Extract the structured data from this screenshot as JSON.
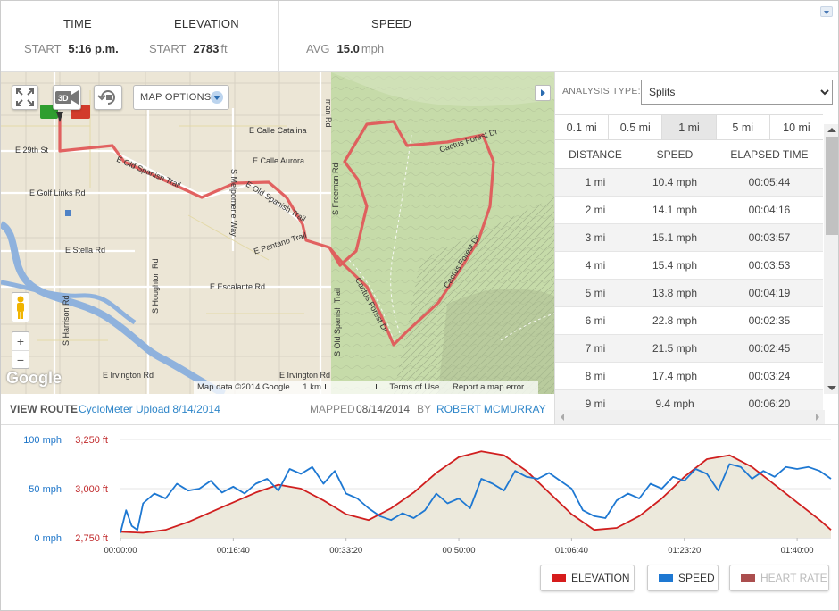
{
  "stats": {
    "time": {
      "heading": "TIME",
      "start_label": "START",
      "start_value": "5:16 p.m."
    },
    "elevation": {
      "heading": "ELEVATION",
      "start_label": "START",
      "start_value": "2783",
      "start_unit": "ft"
    },
    "speed": {
      "heading": "SPEED",
      "avg_label": "AVG",
      "avg_value": "15.0",
      "avg_unit": "mph"
    }
  },
  "map": {
    "options_label": "MAP OPTIONS",
    "badge_3d": "3D",
    "attribution": "Map data ©2014 Google",
    "scale_label": "1 km",
    "terms": "Terms of Use",
    "report": "Report a map error",
    "google_logo": "Google",
    "zoom_in": "+",
    "zoom_out": "−",
    "streets": [
      {
        "name": "E 29th St"
      },
      {
        "name": "E Calle Catalina"
      },
      {
        "name": "E Calle Aurora"
      },
      {
        "name": "E Golf Links Rd"
      },
      {
        "name": "E Old Spanish Trail"
      },
      {
        "name": "E Old Spanish Trail"
      },
      {
        "name": "E Stella Rd"
      },
      {
        "name": "E Pantano Trail"
      },
      {
        "name": "E Escalante Rd"
      },
      {
        "name": "E Irvington Rd"
      },
      {
        "name": "E Irvington Rd"
      },
      {
        "name": "S Houghton Rd"
      },
      {
        "name": "S Harrison Rd"
      },
      {
        "name": "S Freeman Rd"
      },
      {
        "name": "S Old Spanish Trail"
      },
      {
        "name": "Cactus Forest Dr"
      },
      {
        "name": "Cactus Forest Dr"
      },
      {
        "name": "Cactus Forest Dr"
      },
      {
        "name": "S Melpomene Way"
      },
      {
        "name": "man Rd"
      }
    ],
    "colors": {
      "route": "#e05a5a",
      "water": "#8fb2dd",
      "park": "#c6dba9"
    }
  },
  "route_bar": {
    "view_route_label": "VIEW ROUTE",
    "route_name": "CycloMeter Upload 8/14/2014",
    "mapped_label": "MAPPED",
    "mapped_date": "08/14/2014",
    "by_label": "BY",
    "author": "ROBERT MCMURRAY"
  },
  "analysis": {
    "type_label": "ANALYSIS TYPE:",
    "type_value": "Splits",
    "intervals": [
      "0.1 mi",
      "0.5 mi",
      "1 mi",
      "5 mi",
      "10 mi"
    ],
    "active_interval": "1 mi",
    "columns": [
      "DISTANCE",
      "SPEED",
      "ELAPSED TIME"
    ],
    "rows": [
      {
        "distance": "1 mi",
        "speed": "10.4 mph",
        "time": "00:05:44"
      },
      {
        "distance": "2 mi",
        "speed": "14.1 mph",
        "time": "00:04:16"
      },
      {
        "distance": "3 mi",
        "speed": "15.1 mph",
        "time": "00:03:57"
      },
      {
        "distance": "4 mi",
        "speed": "15.4 mph",
        "time": "00:03:53"
      },
      {
        "distance": "5 mi",
        "speed": "13.8 mph",
        "time": "00:04:19"
      },
      {
        "distance": "6 mi",
        "speed": "22.8 mph",
        "time": "00:02:35"
      },
      {
        "distance": "7 mi",
        "speed": "21.5 mph",
        "time": "00:02:45"
      },
      {
        "distance": "8 mi",
        "speed": "17.4 mph",
        "time": "00:03:24"
      },
      {
        "distance": "9 mi",
        "speed": "9.4 mph",
        "time": "00:06:20"
      }
    ]
  },
  "chart_data": {
    "type": "line",
    "x_unit": "seconds",
    "x_tick_labels": [
      "00:00:00",
      "00:16:40",
      "00:33:20",
      "00:50:00",
      "01:06:40",
      "01:23:20",
      "01:40:00"
    ],
    "x_ticks": [
      0,
      1000,
      2000,
      3000,
      4000,
      5000,
      6000
    ],
    "xlim": [
      0,
      6300
    ],
    "left_axis": {
      "label_ticks": [
        "0 mph",
        "50 mph",
        "100 mph"
      ],
      "ticks": [
        0,
        50,
        100
      ],
      "ylim": [
        0,
        100
      ],
      "color": "#1a73c8"
    },
    "right_axis": {
      "label_ticks": [
        "2,750 ft",
        "3,000 ft",
        "3,250 ft"
      ],
      "ticks": [
        2750,
        3000,
        3250
      ],
      "ylim": [
        2750,
        3250
      ],
      "color": "#c0282a"
    },
    "series": [
      {
        "name": "ELEVATION",
        "color": "#d01f1f",
        "fill": "#ece9dc",
        "x": [
          0,
          200,
          400,
          600,
          800,
          1000,
          1200,
          1400,
          1600,
          1800,
          2000,
          2200,
          2400,
          2600,
          2800,
          3000,
          3200,
          3400,
          3600,
          3800,
          4000,
          4200,
          4400,
          4600,
          4800,
          5000,
          5200,
          5400,
          5600,
          5800,
          6000,
          6200,
          6300
        ],
        "values": [
          2780,
          2775,
          2790,
          2830,
          2880,
          2930,
          2980,
          3020,
          3000,
          2940,
          2870,
          2840,
          2900,
          2980,
          3080,
          3160,
          3190,
          3170,
          3090,
          2980,
          2870,
          2790,
          2800,
          2860,
          2950,
          3060,
          3150,
          3170,
          3110,
          3020,
          2930,
          2840,
          2790
        ]
      },
      {
        "name": "SPEED",
        "color": "#1e78d2",
        "x": [
          0,
          50,
          100,
          150,
          200,
          300,
          400,
          500,
          600,
          700,
          800,
          900,
          1000,
          1100,
          1200,
          1300,
          1400,
          1500,
          1600,
          1700,
          1800,
          1900,
          2000,
          2100,
          2200,
          2300,
          2400,
          2500,
          2600,
          2700,
          2800,
          2900,
          3000,
          3100,
          3200,
          3300,
          3400,
          3500,
          3600,
          3700,
          3800,
          3900,
          4000,
          4100,
          4200,
          4300,
          4400,
          4500,
          4600,
          4700,
          4800,
          4900,
          5000,
          5100,
          5200,
          5300,
          5400,
          5500,
          5600,
          5700,
          5800,
          5900,
          6000,
          6100,
          6200,
          6300
        ],
        "values": [
          5,
          28,
          12,
          8,
          35,
          45,
          40,
          55,
          48,
          50,
          58,
          46,
          52,
          45,
          55,
          60,
          48,
          70,
          65,
          72,
          55,
          68,
          45,
          40,
          30,
          22,
          18,
          25,
          20,
          28,
          45,
          35,
          40,
          30,
          60,
          55,
          48,
          68,
          62,
          60,
          66,
          58,
          50,
          28,
          22,
          20,
          38,
          45,
          40,
          55,
          50,
          62,
          58,
          70,
          65,
          48,
          75,
          72,
          60,
          68,
          62,
          72,
          70,
          72,
          68,
          60
        ]
      },
      {
        "name": "HEART RATE",
        "color": "#a23b3b",
        "x": [],
        "values": []
      }
    ],
    "legend": [
      {
        "name": "ELEVATION",
        "color": "#d61c1c",
        "enabled": true
      },
      {
        "name": "SPEED",
        "color": "#1e78d2",
        "enabled": true
      },
      {
        "name": "HEART RATE",
        "color": "#a23b3b",
        "enabled": false
      }
    ]
  }
}
